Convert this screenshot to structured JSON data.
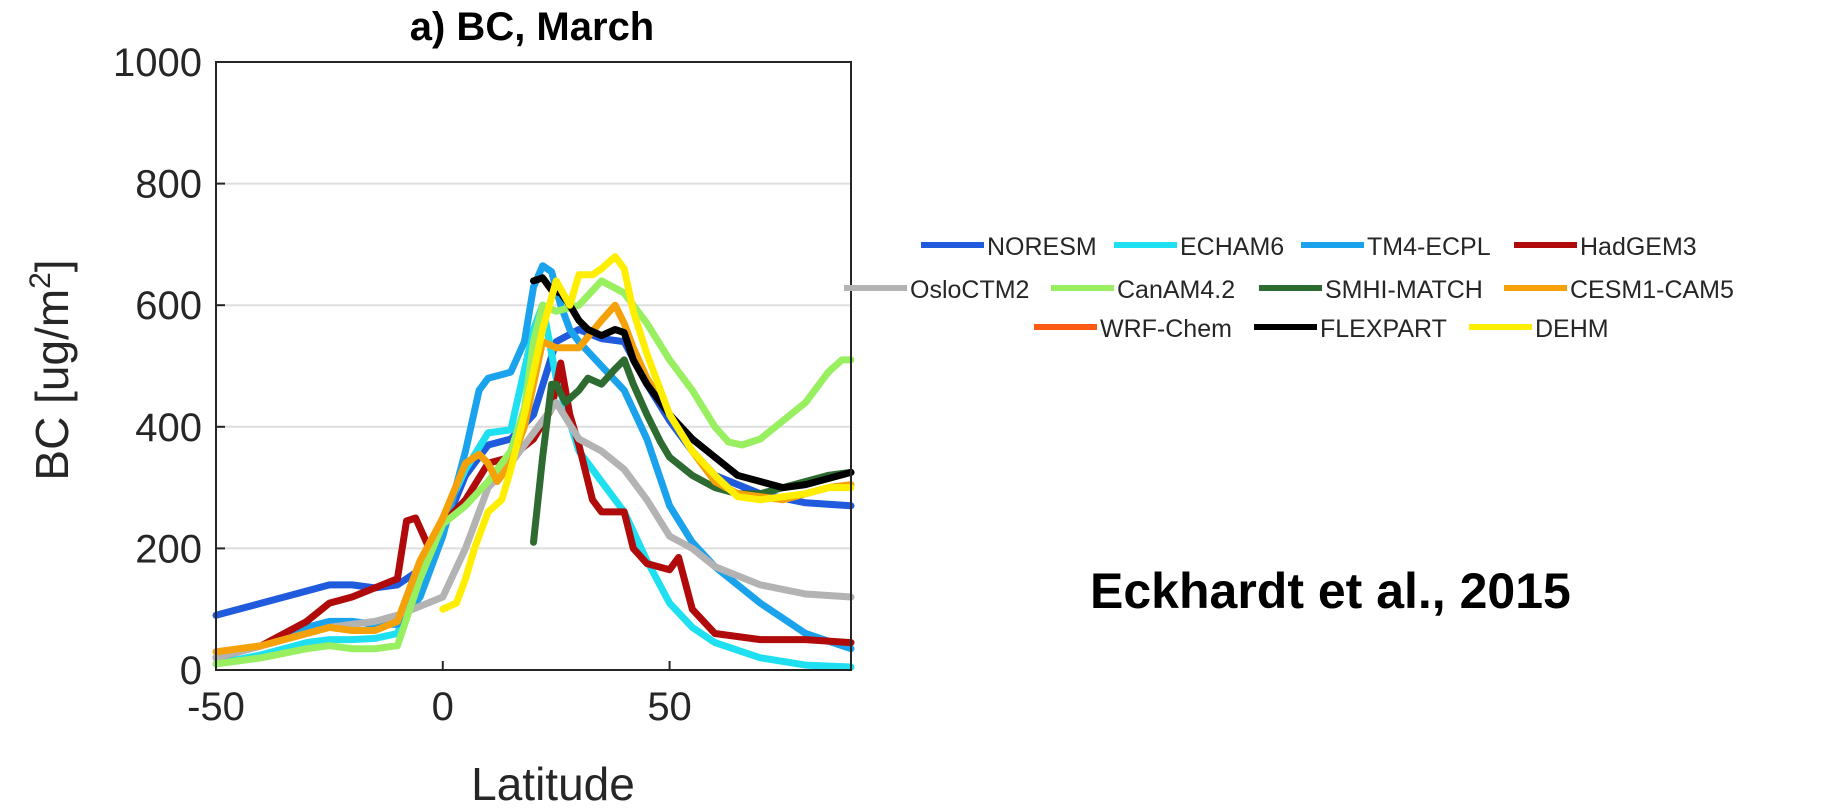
{
  "citation": "Eckhardt et al., 2015",
  "chart_data": {
    "type": "line",
    "title": "a) BC, March",
    "xlabel": "Latitude",
    "ylabel_main": "BC [ug/m",
    "ylabel_sup": "2",
    "ylabel_end": "]",
    "xlim": [
      -50,
      90
    ],
    "ylim": [
      0,
      1000
    ],
    "xticks": [
      -50,
      0,
      50
    ],
    "yticks": [
      0,
      200,
      400,
      600,
      800,
      1000
    ],
    "grid": "horizontal",
    "legend_placement": "right",
    "series": [
      {
        "name": "NORESM",
        "color": "#1f5bdc",
        "x": [
          -50,
          -40,
          -30,
          -25,
          -20,
          -15,
          -10,
          -5,
          0,
          5,
          10,
          15,
          20,
          25,
          30,
          35,
          40,
          45,
          50,
          55,
          60,
          70,
          80,
          90
        ],
        "y": [
          90,
          110,
          130,
          140,
          140,
          135,
          140,
          165,
          230,
          320,
          370,
          380,
          420,
          540,
          560,
          545,
          540,
          470,
          410,
          360,
          320,
          290,
          275,
          270
        ]
      },
      {
        "name": "ECHAM6",
        "color": "#1ee0f0",
        "x": [
          -50,
          -40,
          -30,
          -25,
          -20,
          -15,
          -10,
          -5,
          0,
          5,
          10,
          15,
          20,
          22,
          25,
          30,
          35,
          40,
          45,
          50,
          55,
          60,
          70,
          80,
          90
        ],
        "y": [
          10,
          25,
          45,
          50,
          50,
          52,
          60,
          160,
          250,
          330,
          390,
          395,
          560,
          600,
          480,
          360,
          310,
          260,
          180,
          110,
          70,
          45,
          20,
          8,
          5
        ]
      },
      {
        "name": "TM4-ECPL",
        "color": "#1aa3ec",
        "x": [
          -50,
          -40,
          -30,
          -25,
          -20,
          -15,
          -10,
          -5,
          0,
          5,
          8,
          10,
          15,
          18,
          20,
          22,
          24,
          26,
          28,
          30,
          35,
          40,
          45,
          50,
          55,
          60,
          70,
          80,
          90
        ],
        "y": [
          20,
          40,
          70,
          80,
          80,
          75,
          75,
          120,
          220,
          360,
          460,
          480,
          490,
          540,
          630,
          665,
          655,
          600,
          560,
          540,
          500,
          460,
          380,
          270,
          210,
          170,
          110,
          60,
          35
        ]
      },
      {
        "name": "HadGEM3",
        "color": "#b00a0a",
        "x": [
          -50,
          -40,
          -30,
          -25,
          -20,
          -15,
          -10,
          -8,
          -6,
          -3,
          0,
          5,
          10,
          15,
          20,
          24,
          26,
          28,
          30,
          33,
          35,
          40,
          42,
          45,
          50,
          52,
          55,
          60,
          70,
          80,
          90
        ],
        "y": [
          20,
          40,
          80,
          110,
          120,
          135,
          150,
          245,
          250,
          200,
          240,
          280,
          340,
          350,
          380,
          430,
          505,
          420,
          370,
          280,
          260,
          260,
          200,
          175,
          165,
          185,
          100,
          60,
          50,
          50,
          45
        ]
      },
      {
        "name": "OsloCTM2",
        "color": "#b3b3b3",
        "x": [
          -50,
          -40,
          -30,
          -25,
          -20,
          -15,
          -10,
          -5,
          0,
          5,
          10,
          15,
          20,
          25,
          30,
          35,
          40,
          45,
          50,
          55,
          60,
          70,
          80,
          90
        ],
        "y": [
          20,
          40,
          60,
          70,
          75,
          80,
          90,
          105,
          120,
          200,
          300,
          340,
          390,
          440,
          380,
          360,
          330,
          280,
          220,
          200,
          170,
          140,
          125,
          120
        ]
      },
      {
        "name": "CanAM4.2",
        "color": "#98f060",
        "x": [
          -50,
          -40,
          -30,
          -25,
          -20,
          -15,
          -10,
          -5,
          0,
          5,
          10,
          15,
          18,
          20,
          22,
          25,
          30,
          35,
          40,
          45,
          50,
          55,
          60,
          63,
          66,
          70,
          75,
          80,
          85,
          88,
          90
        ],
        "y": [
          10,
          20,
          35,
          40,
          35,
          35,
          40,
          150,
          240,
          270,
          310,
          360,
          430,
          540,
          600,
          590,
          600,
          640,
          620,
          570,
          510,
          460,
          400,
          375,
          370,
          380,
          410,
          440,
          490,
          510,
          510
        ]
      },
      {
        "name": "SMHI-MATCH",
        "color": "#2e6b30",
        "x": [
          20,
          22,
          24,
          25,
          27,
          30,
          32,
          35,
          38,
          40,
          42,
          45,
          48,
          50,
          55,
          60,
          65,
          70,
          75,
          80,
          85,
          90
        ],
        "y": [
          210,
          350,
          470,
          470,
          440,
          460,
          480,
          470,
          495,
          510,
          470,
          420,
          375,
          350,
          320,
          300,
          290,
          290,
          300,
          310,
          320,
          325
        ]
      },
      {
        "name": "CESM1-CAM5",
        "color": "#f5a20a",
        "x": [
          -50,
          -40,
          -30,
          -25,
          -20,
          -15,
          -10,
          -5,
          0,
          5,
          8,
          10,
          12,
          15,
          18,
          20,
          22,
          25,
          30,
          35,
          38,
          40,
          42,
          45,
          50,
          55,
          60,
          65,
          70,
          75,
          80,
          85,
          90
        ],
        "y": [
          30,
          40,
          60,
          70,
          65,
          65,
          80,
          180,
          250,
          340,
          355,
          340,
          310,
          340,
          400,
          470,
          540,
          530,
          530,
          575,
          600,
          570,
          530,
          480,
          420,
          360,
          310,
          290,
          285,
          280,
          290,
          300,
          305
        ]
      },
      {
        "name": "WRF-Chem",
        "color": "#ff5a14",
        "x": [],
        "y": []
      },
      {
        "name": "FLEXPART",
        "color": "#000000",
        "x": [
          20,
          22,
          24,
          26,
          28,
          30,
          32,
          35,
          38,
          40,
          42,
          45,
          50,
          55,
          60,
          65,
          70,
          75,
          80,
          85,
          90
        ],
        "y": [
          640,
          645,
          625,
          620,
          600,
          575,
          560,
          550,
          560,
          555,
          510,
          470,
          420,
          380,
          350,
          320,
          310,
          300,
          305,
          315,
          325
        ]
      },
      {
        "name": "DEHM",
        "color": "#ffee00",
        "x": [
          0,
          3,
          5,
          7,
          10,
          13,
          15,
          18,
          20,
          22,
          25,
          28,
          30,
          33,
          35,
          38,
          40,
          42,
          45,
          50,
          55,
          60,
          65,
          70,
          75,
          80,
          85,
          90
        ],
        "y": [
          100,
          110,
          150,
          200,
          260,
          280,
          330,
          420,
          490,
          560,
          640,
          600,
          650,
          650,
          660,
          680,
          660,
          590,
          520,
          420,
          360,
          320,
          285,
          280,
          285,
          290,
          300,
          300
        ]
      }
    ]
  }
}
